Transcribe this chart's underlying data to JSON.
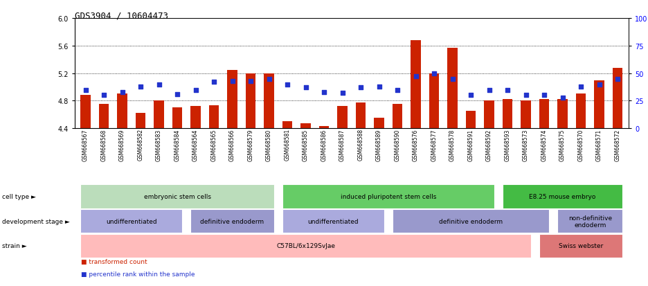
{
  "title": "GDS3904 / 10604473",
  "samples": [
    "GSM668567",
    "GSM668568",
    "GSM668569",
    "GSM668582",
    "GSM668583",
    "GSM668584",
    "GSM668564",
    "GSM668565",
    "GSM668566",
    "GSM668579",
    "GSM668580",
    "GSM668581",
    "GSM668585",
    "GSM668586",
    "GSM668587",
    "GSM668588",
    "GSM668589",
    "GSM668590",
    "GSM668576",
    "GSM668577",
    "GSM668578",
    "GSM668591",
    "GSM668592",
    "GSM668593",
    "GSM668573",
    "GSM668574",
    "GSM668575",
    "GSM668570",
    "GSM668571",
    "GSM668572"
  ],
  "bar_values": [
    4.88,
    4.75,
    4.9,
    4.62,
    4.8,
    4.7,
    4.72,
    4.73,
    5.25,
    5.2,
    5.2,
    4.5,
    4.47,
    4.43,
    4.72,
    4.77,
    4.55,
    4.75,
    5.68,
    5.2,
    5.57,
    4.65,
    4.8,
    4.82,
    4.8,
    4.82,
    4.82,
    4.9,
    5.1,
    5.28
  ],
  "dot_values": [
    35,
    30,
    33,
    38,
    40,
    31,
    35,
    42,
    43,
    43,
    45,
    40,
    37,
    33,
    32,
    37,
    38,
    35,
    47,
    50,
    45,
    30,
    35,
    35,
    30,
    30,
    28,
    38,
    40,
    45
  ],
  "ylim": [
    4.4,
    6.0
  ],
  "yticks_left": [
    4.4,
    4.8,
    5.2,
    5.6,
    6.0
  ],
  "yticks_right": [
    0,
    25,
    50,
    75,
    100
  ],
  "bar_color": "#cc2200",
  "dot_color": "#2233cc",
  "cell_type_groups": [
    {
      "label": "embryonic stem cells",
      "start": 0,
      "end": 11,
      "color": "#bbddbb"
    },
    {
      "label": "induced pluripotent stem cells",
      "start": 11,
      "end": 23,
      "color": "#66cc66"
    },
    {
      "label": "E8.25 mouse embryo",
      "start": 23,
      "end": 30,
      "color": "#44bb44"
    }
  ],
  "dev_stage_groups": [
    {
      "label": "undifferentiated",
      "start": 0,
      "end": 6,
      "color": "#aaaadd"
    },
    {
      "label": "definitive endoderm",
      "start": 6,
      "end": 11,
      "color": "#9999cc"
    },
    {
      "label": "undifferentiated",
      "start": 11,
      "end": 17,
      "color": "#aaaadd"
    },
    {
      "label": "definitive endoderm",
      "start": 17,
      "end": 26,
      "color": "#9999cc"
    },
    {
      "label": "non-definitive\nendoderm",
      "start": 26,
      "end": 30,
      "color": "#9999cc"
    }
  ],
  "strain_groups": [
    {
      "label": "C57BL/6x129SvJae",
      "start": 0,
      "end": 25,
      "color": "#ffbbbb"
    },
    {
      "label": "Swiss webster",
      "start": 25,
      "end": 30,
      "color": "#dd7777"
    }
  ],
  "row_labels": [
    "cell type",
    "development stage",
    "strain"
  ],
  "legend_items": [
    {
      "label": "transformed count",
      "color": "#cc2200"
    },
    {
      "label": "percentile rank within the sample",
      "color": "#2233cc"
    }
  ]
}
